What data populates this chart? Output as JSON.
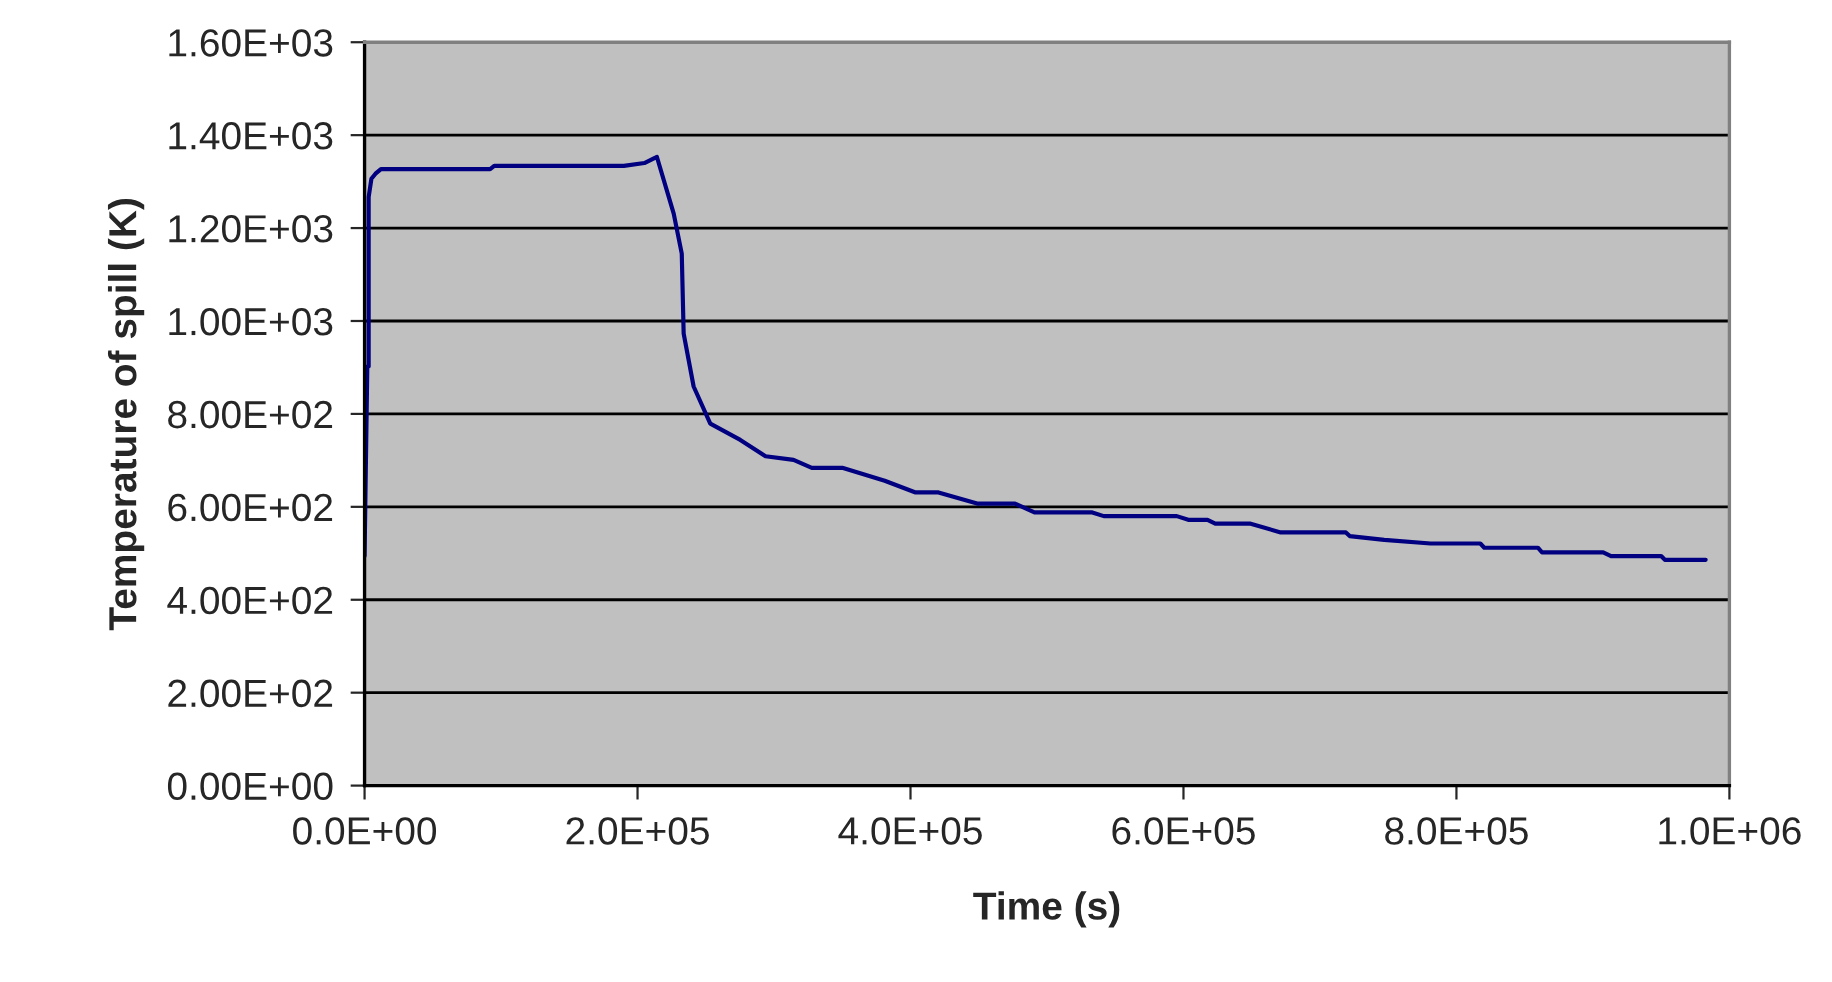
{
  "chart_data": {
    "type": "line",
    "xlabel": "Time (s)",
    "ylabel": "Temperature of spill (K)",
    "series": [
      {
        "color": "#000080",
        "x": [
          0,
          2000,
          3000,
          3000,
          5000,
          8000,
          12000,
          20000,
          92000,
          95000,
          190000,
          205000,
          214200,
          226500,
          232400,
          233800,
          241100,
          253300,
          275300,
          293800,
          314300,
          327700,
          350000,
          381100,
          403700,
          420500,
          448800,
          476600,
          490800,
          533200,
          541600,
          595100,
          603500,
          617600,
          623300,
          648600,
          671200,
          719000,
          721800,
          747100,
          781000,
          817500,
          820400,
          859700,
          862700,
          907500,
          913300,
          950000,
          952700,
          982600
        ],
        "values": [
          494,
          902,
          902,
          1267,
          1306,
          1317,
          1327,
          1327,
          1327,
          1334,
          1334,
          1340,
          1353,
          1231,
          1145,
          973,
          859,
          779,
          744,
          709,
          701,
          684,
          684,
          656,
          631,
          631,
          607,
          607,
          588,
          588,
          580,
          580,
          572,
          572,
          564,
          564,
          545,
          545,
          537,
          529,
          521,
          521,
          512,
          512,
          502,
          502,
          494,
          494,
          486,
          486
        ]
      }
    ],
    "xlim": [
      0,
      1000000
    ],
    "ylim": [
      0,
      1600
    ],
    "xticks": [
      {
        "value": 0,
        "label": "0.0E+00"
      },
      {
        "value": 200000,
        "label": "2.0E+05"
      },
      {
        "value": 400000,
        "label": "4.0E+05"
      },
      {
        "value": 600000,
        "label": "6.0E+05"
      },
      {
        "value": 800000,
        "label": "8.0E+05"
      },
      {
        "value": 1000000,
        "label": "1.0E+06"
      }
    ],
    "yticks": [
      {
        "value": 0,
        "label": "0.00E+00"
      },
      {
        "value": 200,
        "label": "2.00E+02"
      },
      {
        "value": 400,
        "label": "4.00E+02"
      },
      {
        "value": 600,
        "label": "6.00E+02"
      },
      {
        "value": 800,
        "label": "8.00E+02"
      },
      {
        "value": 1000,
        "label": "1.00E+03"
      },
      {
        "value": 1200,
        "label": "1.20E+03"
      },
      {
        "value": 1400,
        "label": "1.40E+03"
      },
      {
        "value": 1600,
        "label": "1.60E+03"
      }
    ],
    "grid": "y",
    "legend": false,
    "marker": "none",
    "line_style": "solid"
  }
}
